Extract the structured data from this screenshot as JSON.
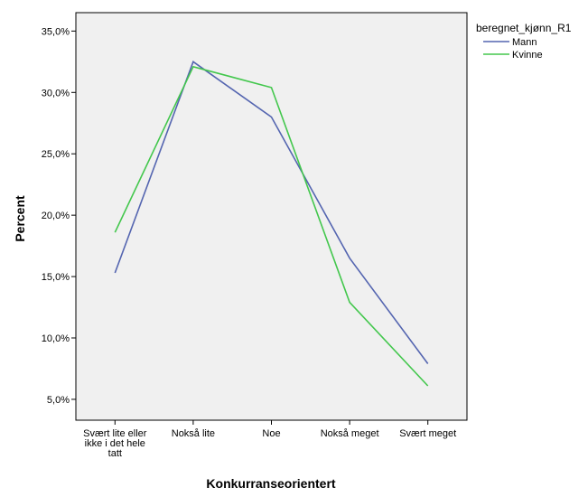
{
  "chart_data": {
    "type": "line",
    "title": "",
    "xlabel": "Konkurranseorientert",
    "ylabel": "Percent",
    "categories": [
      [
        "Svært lite eller",
        "ikke i det hele",
        "tatt"
      ],
      [
        "Nokså lite"
      ],
      [
        "Noe"
      ],
      [
        "Nokså meget"
      ],
      [
        "Svært meget"
      ]
    ],
    "ylim": [
      3.3,
      36.5
    ],
    "yticks": [
      5,
      10,
      15,
      20,
      25,
      30,
      35
    ],
    "ytick_labels": [
      "5,0%",
      "10,0%",
      "15,0%",
      "20,0%",
      "25,0%",
      "30,0%",
      "35,0%"
    ],
    "grid": false,
    "legend_position": "right",
    "legend_title": "beregnet_kjønn_R1",
    "series": [
      {
        "name": "Mann",
        "color": "#5465b0",
        "values": [
          15.3,
          32.5,
          28.0,
          16.5,
          7.9
        ]
      },
      {
        "name": "Kvinne",
        "color": "#43c74d",
        "values": [
          18.6,
          32.1,
          30.4,
          12.9,
          6.1
        ]
      }
    ],
    "colors": {
      "plot_background": "#f0f0f0",
      "frame": "#000000"
    }
  }
}
